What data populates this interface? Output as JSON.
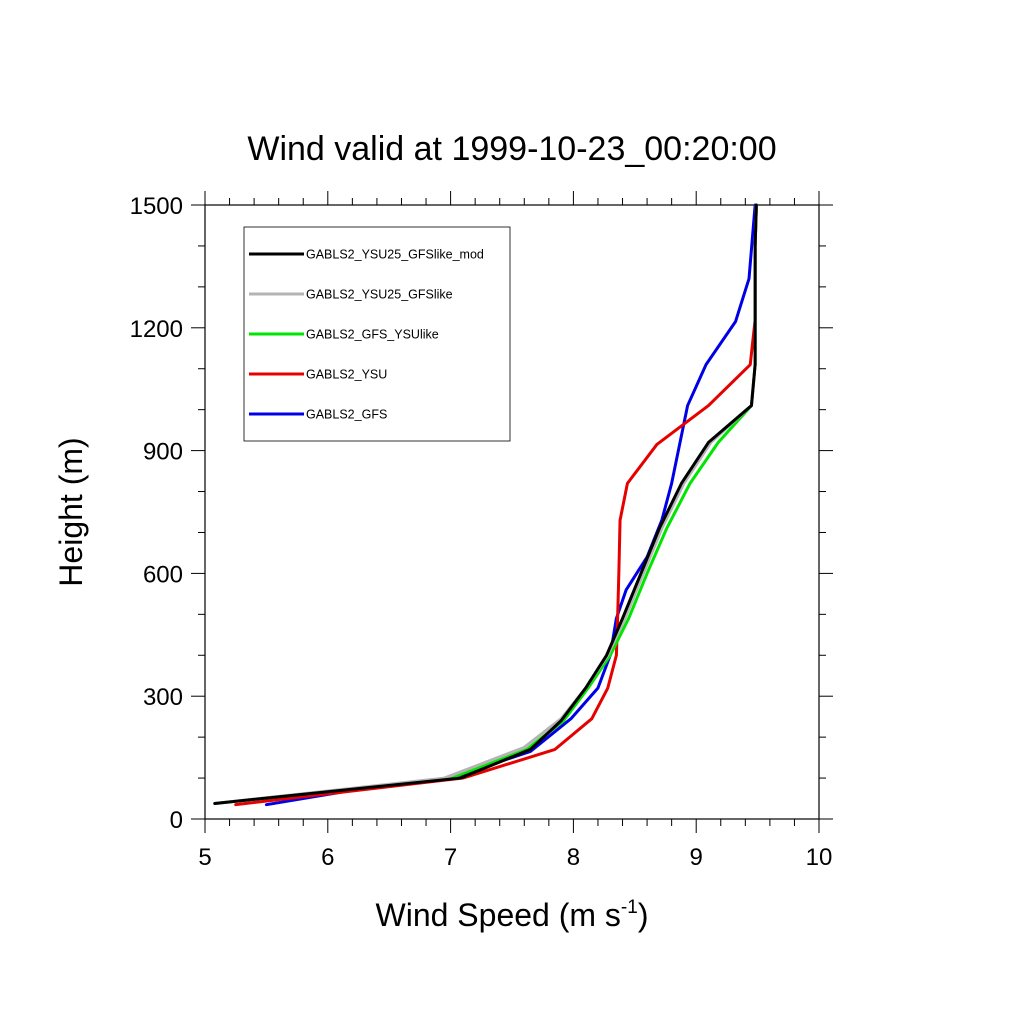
{
  "chart_data": {
    "type": "line",
    "title": "Wind valid at 1999-10-23_00:20:00",
    "xlabel": "Wind Speed (m s",
    "xlabel_superscript": "-1",
    "xlabel_suffix": ")",
    "ylabel": "Height (m)",
    "xlim": [
      5,
      10
    ],
    "ylim": [
      0,
      1500
    ],
    "xticks": [
      5,
      6,
      7,
      8,
      9,
      10
    ],
    "xticklabels": [
      "5",
      "6",
      "7",
      "8",
      "9",
      "10"
    ],
    "yticks": [
      0,
      300,
      600,
      900,
      1200,
      1500
    ],
    "yticklabels": [
      "0",
      "300",
      "600",
      "900",
      "1200",
      "1500"
    ],
    "legend_position": "top-left",
    "grid": false,
    "series": [
      {
        "name": "GABLS2_YSU25_GFSlike_mod",
        "color": "#000000",
        "points": [
          [
            5.08,
            38
          ],
          [
            7.08,
            100
          ],
          [
            7.65,
            170
          ],
          [
            7.9,
            240
          ],
          [
            8.1,
            320
          ],
          [
            8.27,
            400
          ],
          [
            8.4,
            490
          ],
          [
            8.55,
            600
          ],
          [
            8.7,
            710
          ],
          [
            8.88,
            820
          ],
          [
            9.1,
            920
          ],
          [
            9.45,
            1010
          ],
          [
            9.48,
            1110
          ],
          [
            9.48,
            1220
          ],
          [
            9.48,
            1400
          ],
          [
            9.49,
            1500
          ]
        ]
      },
      {
        "name": "GABLS2_YSU25_GFSlike",
        "color": "#b4b4b4",
        "points": [
          [
            5.08,
            38
          ],
          [
            6.95,
            100
          ],
          [
            7.6,
            175
          ],
          [
            7.9,
            245
          ],
          [
            8.1,
            320
          ],
          [
            8.28,
            400
          ],
          [
            8.42,
            490
          ],
          [
            8.57,
            600
          ],
          [
            8.72,
            710
          ],
          [
            8.9,
            820
          ],
          [
            9.12,
            920
          ],
          [
            9.45,
            1010
          ],
          [
            9.48,
            1110
          ],
          [
            9.48,
            1220
          ],
          [
            9.48,
            1400
          ],
          [
            9.49,
            1500
          ]
        ]
      },
      {
        "name": "GABLS2_GFS_YSUlike",
        "color": "#00e600",
        "points": [
          [
            5.08,
            38
          ],
          [
            7.0,
            100
          ],
          [
            7.62,
            170
          ],
          [
            7.92,
            240
          ],
          [
            8.12,
            320
          ],
          [
            8.3,
            400
          ],
          [
            8.45,
            490
          ],
          [
            8.6,
            600
          ],
          [
            8.76,
            710
          ],
          [
            8.95,
            820
          ],
          [
            9.18,
            920
          ],
          [
            9.45,
            1010
          ],
          [
            9.48,
            1110
          ],
          [
            9.48,
            1220
          ],
          [
            9.48,
            1400
          ],
          [
            9.49,
            1500
          ]
        ]
      },
      {
        "name": "GABLS2_YSU",
        "color": "#e60000",
        "points": [
          [
            5.25,
            35
          ],
          [
            7.1,
            100
          ],
          [
            7.85,
            170
          ],
          [
            8.15,
            245
          ],
          [
            8.28,
            320
          ],
          [
            8.35,
            400
          ],
          [
            8.36,
            490
          ],
          [
            8.37,
            600
          ],
          [
            8.38,
            730
          ],
          [
            8.44,
            820
          ],
          [
            8.68,
            915
          ],
          [
            9.1,
            1010
          ],
          [
            9.44,
            1110
          ],
          [
            9.48,
            1220
          ],
          [
            9.48,
            1400
          ],
          [
            9.49,
            1500
          ]
        ]
      },
      {
        "name": "GABLS2_GFS",
        "color": "#0000e6",
        "points": [
          [
            5.5,
            35
          ],
          [
            6.3,
            75
          ],
          [
            7.0,
            100
          ],
          [
            7.65,
            165
          ],
          [
            7.98,
            245
          ],
          [
            8.2,
            320
          ],
          [
            8.3,
            400
          ],
          [
            8.35,
            490
          ],
          [
            8.43,
            560
          ],
          [
            8.6,
            640
          ],
          [
            8.72,
            730
          ],
          [
            8.8,
            820
          ],
          [
            8.93,
            1010
          ],
          [
            9.08,
            1110
          ],
          [
            9.32,
            1215
          ],
          [
            9.43,
            1320
          ],
          [
            9.48,
            1500
          ]
        ]
      }
    ]
  }
}
